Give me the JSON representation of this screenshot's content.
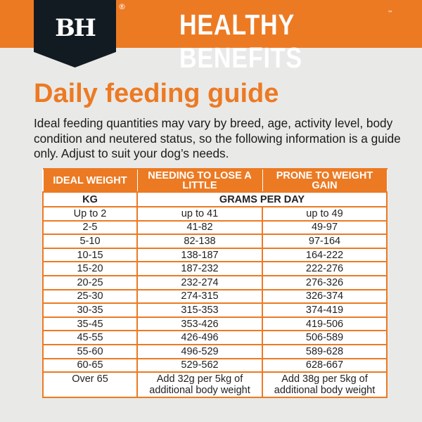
{
  "header": {
    "logo_text": "BH",
    "registered": "®",
    "brand": "HEALTHY BENEFITS",
    "trademark": "™",
    "accent_color": "#ec7a23",
    "logo_color": "#131b22"
  },
  "title": "Daily feeding guide",
  "intro": "Ideal feeding quantities may vary by breed, age, activity level, body condition and neutered status, so the following information is a guide only. Adjust to suit your dog’s needs.",
  "table": {
    "headers": [
      "IDEAL WEIGHT",
      "NEEDING TO LOSE A LITTLE",
      "PRONE TO WEIGHT GAIN"
    ],
    "units": [
      "KG",
      "GRAMS PER DAY"
    ],
    "rows": [
      [
        "Up to 2",
        "up to 41",
        "up to 49"
      ],
      [
        "2-5",
        "41-82",
        "49-97"
      ],
      [
        "5-10",
        "82-138",
        "97-164"
      ],
      [
        "10-15",
        "138-187",
        "164-222"
      ],
      [
        "15-20",
        "187-232",
        "222-276"
      ],
      [
        "20-25",
        "232-274",
        "276-326"
      ],
      [
        "25-30",
        "274-315",
        "326-374"
      ],
      [
        "30-35",
        "315-353",
        "374-419"
      ],
      [
        "35-45",
        "353-426",
        "419-506"
      ],
      [
        "45-55",
        "426-496",
        "506-589"
      ],
      [
        "55-60",
        "496-529",
        "589-628"
      ],
      [
        "60-65",
        "529-562",
        "628-667"
      ],
      [
        "Over 65",
        "Add 32g per 5kg of additional body weight",
        "Add 38g per 5kg of additional body weight"
      ]
    ]
  }
}
